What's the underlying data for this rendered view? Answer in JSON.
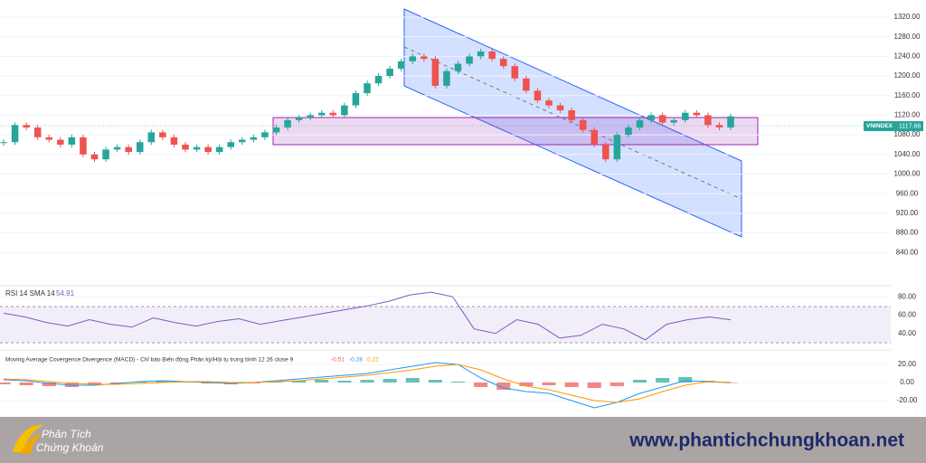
{
  "chart_data": [
    {
      "type": "candlestick",
      "symbol": "VNINDEX",
      "series": [
        {
          "name": "VNINDEX",
          "up_color": "#26a69a",
          "down_color": "#ef5350",
          "values": [
            1065,
            1100,
            1095,
            1075,
            1070,
            1060,
            1075,
            1040,
            1030,
            1050,
            1055,
            1045,
            1065,
            1085,
            1075,
            1060,
            1050,
            1055,
            1045,
            1055,
            1065,
            1070,
            1075,
            1085,
            1095,
            1110,
            1115,
            1120,
            1125,
            1120,
            1140,
            1165,
            1185,
            1200,
            1215,
            1230,
            1240,
            1235,
            1180,
            1210,
            1225,
            1240,
            1250,
            1235,
            1220,
            1195,
            1170,
            1150,
            1140,
            1130,
            1110,
            1090,
            1060,
            1030,
            1080,
            1095,
            1110,
            1120,
            1105,
            1110,
            1125,
            1120,
            1100,
            1095,
            1117.66
          ]
        }
      ],
      "ylim": [
        774,
        1355
      ],
      "yticks": [
        {
          "value": 1320,
          "label": "1320.00"
        },
        {
          "value": 1280,
          "label": "1280.00"
        },
        {
          "value": 1240,
          "label": "1240.00"
        },
        {
          "value": 1200,
          "label": "1200.00"
        },
        {
          "value": 1160,
          "label": "1160.00"
        },
        {
          "value": 1120,
          "label": "1120.00"
        },
        {
          "value": 1080,
          "label": "1080.00"
        },
        {
          "value": 1040,
          "label": "1040.00"
        },
        {
          "value": 1000,
          "label": "1000.00"
        },
        {
          "value": 960,
          "label": "960.00"
        },
        {
          "value": 920,
          "label": "920.00"
        },
        {
          "value": 880,
          "label": "880.00"
        },
        {
          "value": 840,
          "label": "840.00"
        }
      ]
    },
    {
      "type": "line",
      "title": "RSI 14 SMA 14",
      "series": [
        {
          "name": "RSI",
          "color": "#7e57c2",
          "values": [
            62,
            58,
            52,
            48,
            55,
            50,
            47,
            57,
            52,
            48,
            53,
            56,
            50,
            54,
            58,
            62,
            66,
            70,
            75,
            82,
            85,
            80,
            45,
            40,
            55,
            50,
            35,
            38,
            50,
            45,
            33,
            50,
            55,
            58,
            54.91
          ]
        }
      ],
      "ylim": [
        24,
        90
      ],
      "yticks": [
        {
          "value": 80,
          "label": "80.00"
        },
        {
          "value": 60,
          "label": "60.00"
        },
        {
          "value": 40,
          "label": "40.00"
        }
      ]
    },
    {
      "type": "macd",
      "title": "Moving Average Covergence Divergence (MACD) - Chỉ báo Biến động Phân kỳ/Hội tụ trung bình 12 26 close 9",
      "series": [
        {
          "name": "Histogram",
          "color": "#ef5350",
          "up_color": "#26a69a",
          "values": [
            -2,
            -3,
            -4,
            -5,
            -3,
            -1,
            1,
            2,
            1,
            -1,
            -2,
            -1,
            1,
            2,
            3,
            2,
            3,
            4,
            5,
            3,
            1,
            -5,
            -8,
            -4,
            -3,
            -5,
            -6,
            -4,
            3,
            5,
            6,
            2,
            -0.51
          ]
        },
        {
          "name": "MACD",
          "color": "#2196f3",
          "values": [
            3,
            2,
            -1,
            -3,
            -3,
            -1,
            1,
            2,
            1,
            0,
            -1,
            0,
            2,
            4,
            6,
            8,
            10,
            14,
            18,
            22,
            20,
            5,
            -6,
            -10,
            -12,
            -20,
            -28,
            -22,
            -12,
            -5,
            2,
            1,
            -0.28
          ]
        },
        {
          "name": "Signal",
          "color": "#ff9800",
          "values": [
            4,
            3,
            1,
            -1,
            -2,
            -2,
            -1,
            0,
            1,
            1,
            0,
            0,
            1,
            2,
            4,
            6,
            8,
            11,
            14,
            18,
            20,
            14,
            4,
            -4,
            -8,
            -14,
            -20,
            -22,
            -18,
            -10,
            -3,
            1,
            0.22
          ]
        }
      ],
      "ylim": [
        -37,
        33
      ],
      "yticks": [
        {
          "value": 20,
          "label": "20.00"
        },
        {
          "value": 0,
          "label": "0.00"
        },
        {
          "value": -20,
          "label": "-20.00"
        }
      ]
    }
  ],
  "footer": {
    "brand_line1": "Phân Tích",
    "brand_line2": "Chứng Khoán",
    "website": "www.phantichchungkhoan.net"
  }
}
